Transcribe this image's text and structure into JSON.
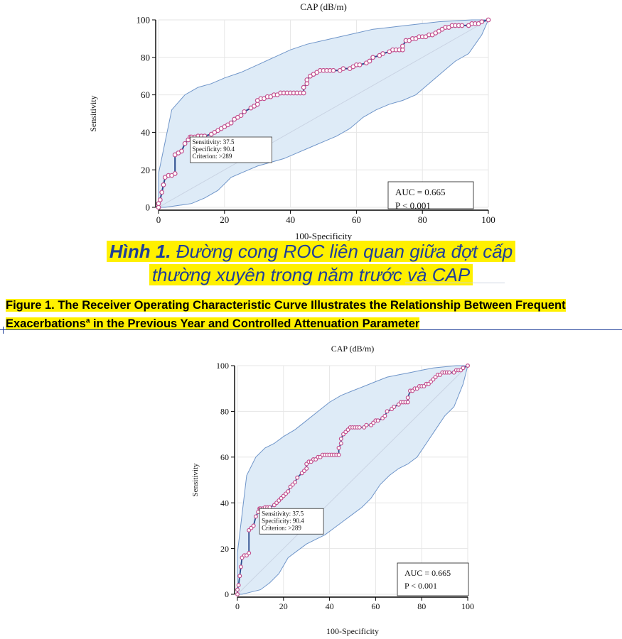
{
  "chart_data": [
    {
      "type": "line",
      "title": "CAP (dB/m)",
      "xlabel": "100-Specificity",
      "ylabel": "Sensitivity",
      "xlim": [
        0,
        100
      ],
      "ylim": [
        0,
        100
      ],
      "xticks": [
        "0",
        "20",
        "40",
        "60",
        "80",
        "100"
      ],
      "yticks": [
        "0",
        "20",
        "40",
        "60",
        "80",
        "100"
      ],
      "grid": true,
      "series": [
        {
          "x": [
            0,
            0,
            0.5,
            1,
            1.5,
            2,
            3,
            4,
            5,
            5,
            6,
            7,
            8,
            9,
            9.6,
            10,
            11,
            12,
            13,
            14,
            16,
            17,
            18,
            19,
            20,
            21,
            22,
            23,
            24,
            25,
            26,
            28,
            29,
            30,
            30,
            31,
            32,
            33,
            34,
            35,
            36,
            37,
            38,
            39,
            40,
            41,
            42,
            43,
            44,
            44,
            45,
            45,
            46,
            47,
            48,
            49,
            50,
            51,
            52,
            53,
            55,
            56,
            58,
            59,
            60,
            61,
            63,
            64,
            65,
            67,
            68,
            70,
            71,
            72,
            73,
            74,
            74,
            75,
            76,
            77,
            78,
            79,
            80,
            81,
            82,
            83,
            84,
            85,
            86,
            87,
            88,
            89,
            90,
            91,
            92,
            94,
            95,
            96,
            97,
            98,
            100
          ],
          "y": [
            0,
            2,
            4,
            8,
            12,
            16,
            17,
            17,
            18,
            28,
            29,
            30,
            34,
            36,
            37.5,
            37.5,
            37.5,
            38,
            38,
            38,
            39,
            40,
            41,
            42,
            43,
            44,
            45,
            47,
            48,
            49,
            51,
            53,
            54,
            55,
            57,
            58,
            58,
            59,
            59,
            60,
            60,
            61,
            61,
            61,
            61,
            61,
            61,
            61,
            61,
            64,
            66,
            68,
            70,
            71,
            72,
            73,
            73,
            73,
            73,
            73,
            73,
            74,
            74,
            75,
            76,
            76,
            77,
            78,
            80,
            81,
            82,
            83,
            84,
            84,
            84,
            84,
            86,
            89,
            89,
            90,
            90,
            91,
            91,
            91,
            92,
            92,
            93,
            94,
            95,
            96,
            96,
            97,
            97,
            97,
            97,
            97,
            98,
            98,
            98,
            99,
            100
          ]
        }
      ],
      "ci_band": {
        "upper": [
          [
            0,
            0
          ],
          [
            0,
            18
          ],
          [
            2,
            35
          ],
          [
            4,
            52
          ],
          [
            8,
            60
          ],
          [
            12,
            64
          ],
          [
            16,
            66
          ],
          [
            20,
            69
          ],
          [
            25,
            72
          ],
          [
            30,
            76
          ],
          [
            35,
            80
          ],
          [
            40,
            84
          ],
          [
            45,
            87
          ],
          [
            50,
            89
          ],
          [
            55,
            91
          ],
          [
            60,
            93
          ],
          [
            65,
            95
          ],
          [
            70,
            96
          ],
          [
            75,
            97
          ],
          [
            80,
            98
          ],
          [
            85,
            99
          ],
          [
            90,
            99.5
          ],
          [
            95,
            100
          ],
          [
            100,
            100
          ]
        ],
        "lower": [
          [
            100,
            100
          ],
          [
            98,
            92
          ],
          [
            94,
            82
          ],
          [
            90,
            78
          ],
          [
            86,
            72
          ],
          [
            82,
            66
          ],
          [
            78,
            60
          ],
          [
            74,
            57
          ],
          [
            70,
            55
          ],
          [
            66,
            52
          ],
          [
            62,
            48
          ],
          [
            58,
            42
          ],
          [
            54,
            38
          ],
          [
            50,
            35
          ],
          [
            46,
            32
          ],
          [
            42,
            29
          ],
          [
            38,
            26
          ],
          [
            34,
            24
          ],
          [
            30,
            22
          ],
          [
            26,
            19
          ],
          [
            22,
            16
          ],
          [
            18,
            9
          ],
          [
            14,
            5
          ],
          [
            10,
            2
          ],
          [
            6,
            1
          ],
          [
            2,
            0
          ],
          [
            0,
            0
          ]
        ]
      },
      "annotation": {
        "lines": [
          "Sensitivity: 37.5",
          "Specificity: 90.4",
          "Criterion: >289"
        ],
        "point": [
          9.6,
          37.5
        ]
      },
      "auc_box": [
        "AUC = 0.665",
        "P < 0.001"
      ]
    },
    {
      "type": "line",
      "title": "CAP (dB/m)",
      "xlabel": "100-Specificity",
      "ylabel": "Sensitivity",
      "xlim": [
        0,
        100
      ],
      "ylim": [
        0,
        100
      ],
      "xticks": [
        "0",
        "20",
        "40",
        "60",
        "80",
        "100"
      ],
      "yticks": [
        "0",
        "20",
        "40",
        "60",
        "80",
        "100"
      ],
      "grid": true,
      "series": [
        {
          "x": [
            0,
            0,
            0.5,
            1,
            1.5,
            2,
            3,
            4,
            5,
            5,
            6,
            7,
            8,
            9,
            9.6,
            10,
            11,
            12,
            13,
            14,
            16,
            17,
            18,
            19,
            20,
            21,
            22,
            23,
            24,
            25,
            26,
            28,
            29,
            30,
            30,
            31,
            32,
            33,
            34,
            35,
            36,
            37,
            38,
            39,
            40,
            41,
            42,
            43,
            44,
            44,
            45,
            45,
            46,
            47,
            48,
            49,
            50,
            51,
            52,
            53,
            55,
            56,
            58,
            59,
            60,
            61,
            63,
            64,
            65,
            67,
            68,
            70,
            71,
            72,
            73,
            74,
            74,
            75,
            76,
            77,
            78,
            79,
            80,
            81,
            82,
            83,
            84,
            85,
            86,
            87,
            88,
            89,
            90,
            91,
            92,
            94,
            95,
            96,
            97,
            98,
            100
          ],
          "y": [
            0,
            2,
            4,
            8,
            12,
            16,
            17,
            17,
            18,
            28,
            29,
            30,
            34,
            36,
            37.5,
            37.5,
            37.5,
            38,
            38,
            38,
            39,
            40,
            41,
            42,
            43,
            44,
            45,
            47,
            48,
            49,
            51,
            53,
            54,
            55,
            57,
            58,
            58,
            59,
            59,
            60,
            60,
            61,
            61,
            61,
            61,
            61,
            61,
            61,
            61,
            64,
            66,
            68,
            70,
            71,
            72,
            73,
            73,
            73,
            73,
            73,
            73,
            74,
            74,
            75,
            76,
            76,
            77,
            78,
            80,
            81,
            82,
            83,
            84,
            84,
            84,
            84,
            86,
            89,
            89,
            90,
            90,
            91,
            91,
            91,
            92,
            92,
            93,
            94,
            95,
            96,
            96,
            97,
            97,
            97,
            97,
            97,
            98,
            98,
            98,
            99,
            100
          ]
        }
      ],
      "ci_band": {
        "upper": [
          [
            0,
            0
          ],
          [
            0,
            18
          ],
          [
            2,
            35
          ],
          [
            4,
            52
          ],
          [
            8,
            60
          ],
          [
            12,
            64
          ],
          [
            16,
            66
          ],
          [
            20,
            69
          ],
          [
            25,
            72
          ],
          [
            30,
            76
          ],
          [
            35,
            80
          ],
          [
            40,
            84
          ],
          [
            45,
            87
          ],
          [
            50,
            89
          ],
          [
            55,
            91
          ],
          [
            60,
            93
          ],
          [
            65,
            95
          ],
          [
            70,
            96
          ],
          [
            75,
            97
          ],
          [
            80,
            98
          ],
          [
            85,
            99
          ],
          [
            90,
            99.5
          ],
          [
            95,
            100
          ],
          [
            100,
            100
          ]
        ],
        "lower": [
          [
            100,
            100
          ],
          [
            98,
            92
          ],
          [
            94,
            82
          ],
          [
            90,
            78
          ],
          [
            86,
            72
          ],
          [
            82,
            66
          ],
          [
            78,
            60
          ],
          [
            74,
            57
          ],
          [
            70,
            55
          ],
          [
            66,
            52
          ],
          [
            62,
            48
          ],
          [
            58,
            42
          ],
          [
            54,
            38
          ],
          [
            50,
            35
          ],
          [
            46,
            32
          ],
          [
            42,
            29
          ],
          [
            38,
            26
          ],
          [
            34,
            24
          ],
          [
            30,
            22
          ],
          [
            26,
            19
          ],
          [
            22,
            16
          ],
          [
            18,
            9
          ],
          [
            14,
            5
          ],
          [
            10,
            2
          ],
          [
            6,
            1
          ],
          [
            2,
            0
          ],
          [
            0,
            0
          ]
        ]
      },
      "annotation": {
        "lines": [
          "Sensitivity: 37.5",
          "Specificity: 90.4",
          "Criterion: >289"
        ],
        "point": [
          9.6,
          37.5
        ]
      },
      "auc_box": [
        "AUC = 0.665",
        "P < 0.001"
      ]
    }
  ],
  "caption_vi": {
    "label": "Hình 1.",
    "line1": "Đường cong ROC liên quan giữa đợt cấp",
    "line2": "thường xuyên trong năm trước và CAP"
  },
  "caption_en": {
    "prefix": "Figure 1. The Receiver Operating Characteristic Curve Illustrates the Relationship Between Frequent Exacerbations",
    "sup": "a",
    "suffix": " in the Previous Year and Controlled Attenuation Parameter"
  },
  "colors": {
    "band_fill": "#deebf7",
    "band_stroke": "#6f95c9",
    "roc_line": "#2a4b8d",
    "marker": "#c2508e",
    "diagonal": "#c9d3e3",
    "highlight": "#fff000",
    "caption_blue": "#1f3f99"
  }
}
